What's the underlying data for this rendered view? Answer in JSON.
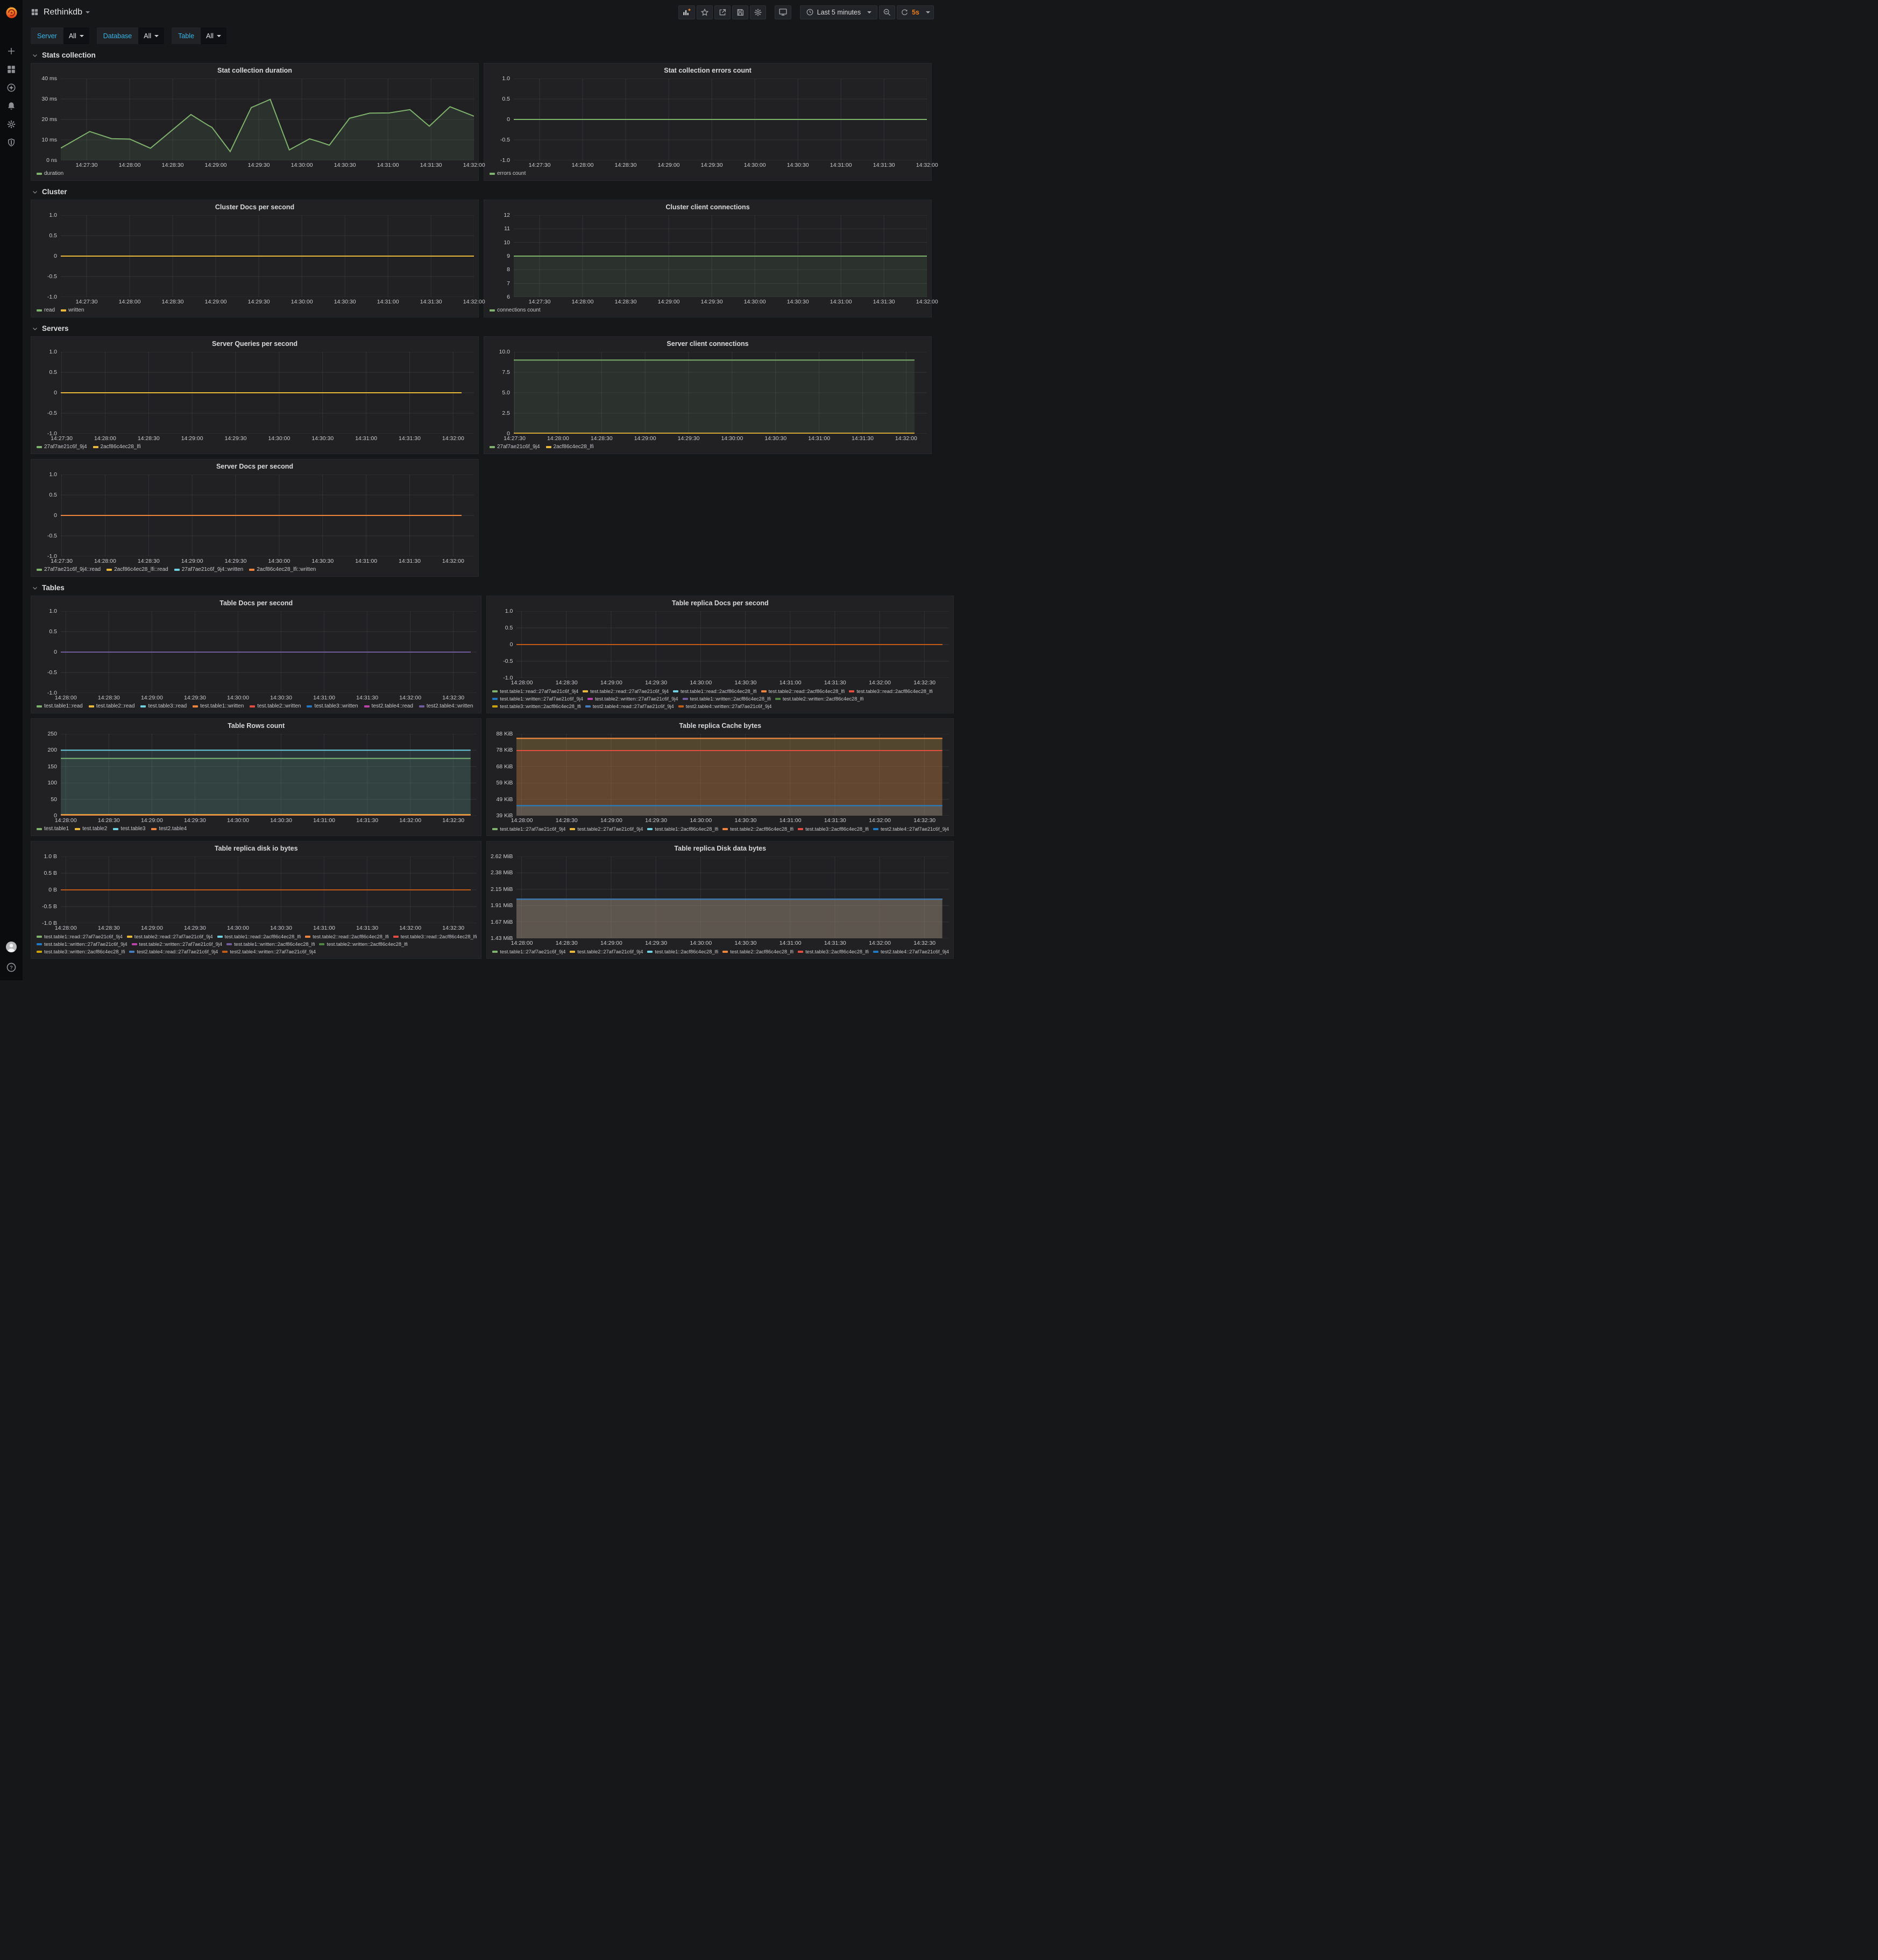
{
  "header": {
    "title": "Rethinkdb",
    "time_range": "Last 5 minutes",
    "refresh": "5s"
  },
  "filters": [
    {
      "label": "Server",
      "value": "All"
    },
    {
      "label": "Database",
      "value": "All"
    },
    {
      "label": "Table",
      "value": "All"
    }
  ],
  "sidebar": {
    "icons": [
      "plus",
      "dashboards",
      "explore",
      "alerting",
      "configuration",
      "server-admin"
    ],
    "bottom": [
      "user-avatar",
      "help"
    ]
  },
  "toolbar": [
    "add-panel",
    "mark-favorite",
    "share-dashboard",
    "save-dashboard",
    "dashboard-settings",
    "cycle-view-mode",
    "time-range",
    "zoom-out",
    "refresh"
  ],
  "colors": {
    "accent_orange": "#eb7b18",
    "filter_label_teal": "#33b5e5",
    "page_bg": "#161719",
    "panel_bg": "#212124",
    "green": "#7EB26D",
    "yellow": "#EAB839",
    "cyan": "#6ED0E0",
    "orange": "#EF843C",
    "red": "#E24D42",
    "blue": "#1F78C1",
    "magenta": "#BA43A9",
    "purple": "#705DA0",
    "dark_green": "#508642",
    "dark_yellow": "#CCA300",
    "blue2": "#447EBC",
    "dark_orange": "#C15C17"
  },
  "sections": [
    {
      "title": "Stats collection",
      "panels": [
        0,
        1
      ]
    },
    {
      "title": "Cluster",
      "panels": [
        2,
        3
      ]
    },
    {
      "title": "Servers",
      "panels": [
        4,
        5,
        6
      ]
    },
    {
      "title": "Tables",
      "panels": [
        7,
        8,
        9,
        10,
        11,
        12
      ]
    }
  ],
  "panels": [
    {
      "title": "Stat collection duration",
      "type": "line",
      "yticks": [
        "40 ms",
        "30 ms",
        "20 ms",
        "10 ms",
        "0 ns"
      ],
      "ymin": 0,
      "ymax": 40,
      "xticks": {
        "labels": [
          "14:27:30",
          "14:28:00",
          "14:28:30",
          "14:29:00",
          "14:29:30",
          "14:30:00",
          "14:30:30",
          "14:31:00",
          "14:31:30",
          "14:32:00"
        ],
        "start": 0.0625,
        "step": 0.1042
      },
      "series": [
        {
          "name": "duration",
          "color": "#7EB26D",
          "fill": true,
          "points": [
            [
              0,
              6
            ],
            [
              0.07,
              14.1
            ],
            [
              0.123,
              10.6
            ],
            [
              0.167,
              10.4
            ],
            [
              0.217,
              5.9
            ],
            [
              0.315,
              22.4
            ],
            [
              0.356,
              17.2
            ],
            [
              0.366,
              16.1
            ],
            [
              0.41,
              4.3
            ],
            [
              0.461,
              25.8
            ],
            [
              0.507,
              29.8
            ],
            [
              0.553,
              5.1
            ],
            [
              0.602,
              10.5
            ],
            [
              0.627,
              9
            ],
            [
              0.65,
              7.4
            ],
            [
              0.699,
              20.6
            ],
            [
              0.748,
              23.1
            ],
            [
              0.795,
              23.2
            ],
            [
              0.845,
              24.8
            ],
            [
              0.892,
              16.7
            ],
            [
              0.942,
              26.2
            ],
            [
              1,
              21.6
            ]
          ]
        }
      ]
    },
    {
      "title": "Stat collection errors count",
      "type": "line",
      "yticks": [
        "1.0",
        "0.5",
        "0",
        "-0.5",
        "-1.0"
      ],
      "ymin": -1,
      "ymax": 1,
      "xticks": {
        "labels": [
          "14:27:30",
          "14:28:00",
          "14:28:30",
          "14:29:00",
          "14:29:30",
          "14:30:00",
          "14:30:30",
          "14:31:00",
          "14:31:30",
          "14:32:00"
        ],
        "start": 0.0625,
        "step": 0.1042
      },
      "series": [
        {
          "name": "errors count",
          "color": "#7EB26D",
          "value": 0
        }
      ]
    },
    {
      "title": "Cluster Docs per second",
      "type": "line",
      "yticks": [
        "1.0",
        "0.5",
        "0",
        "-0.5",
        "-1.0"
      ],
      "ymin": -1,
      "ymax": 1,
      "xticks": {
        "labels": [
          "14:27:30",
          "14:28:00",
          "14:28:30",
          "14:29:00",
          "14:29:30",
          "14:30:00",
          "14:30:30",
          "14:31:00",
          "14:31:30",
          "14:32:00"
        ],
        "start": 0.0625,
        "step": 0.1042
      },
      "series": [
        {
          "name": "read",
          "color": "#7EB26D",
          "value": 0
        },
        {
          "name": "written",
          "color": "#EAB839",
          "value": 0
        }
      ]
    },
    {
      "title": "Cluster client connections",
      "type": "line",
      "yticks": [
        "12",
        "11",
        "10",
        "9",
        "8",
        "7",
        "6"
      ],
      "ymin": 6,
      "ymax": 12,
      "xticks": {
        "labels": [
          "14:27:30",
          "14:28:00",
          "14:28:30",
          "14:29:00",
          "14:29:30",
          "14:30:00",
          "14:30:30",
          "14:31:00",
          "14:31:30",
          "14:32:00"
        ],
        "start": 0.0625,
        "step": 0.1042
      },
      "series": [
        {
          "name": "connections count",
          "color": "#7EB26D",
          "value": 9,
          "fill": true
        }
      ]
    },
    {
      "title": "Server Queries per second",
      "type": "line",
      "yticks": [
        "1.0",
        "0.5",
        "0",
        "-0.5",
        "-1.0"
      ],
      "ymin": -1,
      "ymax": 1,
      "xend": 0.97,
      "xticks": {
        "labels": [
          "14:27:30",
          "14:28:00",
          "14:28:30",
          "14:29:00",
          "14:29:30",
          "14:30:00",
          "14:30:30",
          "14:31:00",
          "14:31:30",
          "14:32:00"
        ],
        "start": 0.002,
        "step": 0.1053
      },
      "series": [
        {
          "name": "27af7ae21c6f_9j4",
          "color": "#7EB26D",
          "value": 0
        },
        {
          "name": "2acf86c4ec28_lfi",
          "color": "#EAB839",
          "value": 0
        }
      ]
    },
    {
      "title": "Server client connections",
      "type": "line",
      "yticks": [
        "10.0",
        "7.5",
        "5.0",
        "2.5",
        "0"
      ],
      "ymin": 0,
      "ymax": 10,
      "xend": 0.97,
      "xticks": {
        "labels": [
          "14:27:30",
          "14:28:00",
          "14:28:30",
          "14:29:00",
          "14:29:30",
          "14:30:00",
          "14:30:30",
          "14:31:00",
          "14:31:30",
          "14:32:00"
        ],
        "start": 0.002,
        "step": 0.1053
      },
      "series": [
        {
          "name": "27af7ae21c6f_9j4",
          "color": "#7EB26D",
          "value": 9,
          "fill": true
        },
        {
          "name": "2acf86c4ec28_lfi",
          "color": "#EAB839",
          "value": 0.05
        }
      ]
    },
    {
      "title": "Server Docs per second",
      "type": "line",
      "yticks": [
        "1.0",
        "0.5",
        "0",
        "-0.5",
        "-1.0"
      ],
      "ymin": -1,
      "ymax": 1,
      "xend": 0.97,
      "xticks": {
        "labels": [
          "14:27:30",
          "14:28:00",
          "14:28:30",
          "14:29:00",
          "14:29:30",
          "14:30:00",
          "14:30:30",
          "14:31:00",
          "14:31:30",
          "14:32:00"
        ],
        "start": 0.002,
        "step": 0.1053
      },
      "series": [
        {
          "name": "27af7ae21c6f_9j4::read",
          "color": "#7EB26D",
          "value": 0
        },
        {
          "name": "2acf86c4ec28_lfi::read",
          "color": "#EAB839",
          "value": 0
        },
        {
          "name": "27af7ae21c6f_9j4::written",
          "color": "#6ED0E0",
          "value": 0
        },
        {
          "name": "2acf86c4ec28_lfi::written",
          "color": "#EF843C",
          "value": 0
        }
      ]
    },
    {
      "title": "Table Docs per second",
      "type": "line",
      "yticks": [
        "1.0",
        "0.5",
        "0",
        "-0.5",
        "-1.0"
      ],
      "ymin": -1,
      "ymax": 1,
      "xend": 0.985,
      "xticks": {
        "labels": [
          "14:28:00",
          "14:28:30",
          "14:29:00",
          "14:29:30",
          "14:30:00",
          "14:30:30",
          "14:31:00",
          "14:31:30",
          "14:32:00",
          "14:32:30"
        ],
        "start": 0.012,
        "step": 0.1035
      },
      "series": [
        {
          "name": "test.table1::read",
          "color": "#7EB26D",
          "value": 0
        },
        {
          "name": "test.table2::read",
          "color": "#EAB839",
          "value": 0
        },
        {
          "name": "test.table3::read",
          "color": "#6ED0E0",
          "value": 0
        },
        {
          "name": "test.table1::written",
          "color": "#EF843C",
          "value": 0
        },
        {
          "name": "test.table2::written",
          "color": "#E24D42",
          "value": 0
        },
        {
          "name": "test.table3::written",
          "color": "#1F78C1",
          "value": 0
        },
        {
          "name": "test2.table4::read",
          "color": "#BA43A9",
          "value": 0
        },
        {
          "name": "test2.table4::written",
          "color": "#705DA0",
          "value": 0
        }
      ]
    },
    {
      "title": "Table replica Docs per second",
      "type": "line",
      "small_legend": true,
      "yticks": [
        "1.0",
        "0.5",
        "0",
        "-0.5",
        "-1.0"
      ],
      "ymin": -1,
      "ymax": 1,
      "xend": 0.985,
      "xticks": {
        "labels": [
          "14:28:00",
          "14:28:30",
          "14:29:00",
          "14:29:30",
          "14:30:00",
          "14:30:30",
          "14:31:00",
          "14:31:30",
          "14:32:00",
          "14:32:30"
        ],
        "start": 0.012,
        "step": 0.1035
      },
      "legend_rows": [
        [
          0,
          1,
          2,
          3,
          4
        ],
        [
          5,
          6,
          7,
          8
        ],
        [
          9,
          10,
          11
        ]
      ],
      "series": [
        {
          "name": "test.table1::read::27af7ae21c6f_9j4",
          "color": "#7EB26D",
          "value": 0
        },
        {
          "name": "test.table2::read::27af7ae21c6f_9j4",
          "color": "#EAB839",
          "value": 0
        },
        {
          "name": "test.table1::read::2acf86c4ec28_lfi",
          "color": "#6ED0E0",
          "value": 0
        },
        {
          "name": "test.table2::read::2acf86c4ec28_lfi",
          "color": "#EF843C",
          "value": 0
        },
        {
          "name": "test.table3::read::2acf86c4ec28_lfi",
          "color": "#E24D42",
          "value": 0
        },
        {
          "name": "test.table1::written::27af7ae21c6f_9j4",
          "color": "#1F78C1",
          "value": 0
        },
        {
          "name": "test.table2::written::27af7ae21c6f_9j4",
          "color": "#BA43A9",
          "value": 0
        },
        {
          "name": "test.table1::written::2acf86c4ec28_lfi",
          "color": "#705DA0",
          "value": 0
        },
        {
          "name": "test.table2::written::2acf86c4ec28_lfi",
          "color": "#508642",
          "value": 0
        },
        {
          "name": "test.table3::written::2acf86c4ec28_lfi",
          "color": "#CCA300",
          "value": 0
        },
        {
          "name": "test2.table4::read::27af7ae21c6f_9j4",
          "color": "#447EBC",
          "value": 0
        },
        {
          "name": "test2.table4::written::27af7ae21c6f_9j4",
          "color": "#C15C17",
          "value": 0
        }
      ]
    },
    {
      "title": "Table Rows count",
      "type": "line",
      "yticks": [
        "250",
        "200",
        "150",
        "100",
        "50",
        "0"
      ],
      "ymin": 0,
      "ymax": 250,
      "xend": 0.985,
      "xticks": {
        "labels": [
          "14:28:00",
          "14:28:30",
          "14:29:00",
          "14:29:30",
          "14:30:00",
          "14:30:30",
          "14:31:00",
          "14:31:30",
          "14:32:00",
          "14:32:30"
        ],
        "start": 0.012,
        "step": 0.1035
      },
      "series": [
        {
          "name": "test.table1",
          "color": "#7EB26D",
          "value": 175,
          "fill": true
        },
        {
          "name": "test.table2",
          "color": "#EAB839",
          "value": 3,
          "fill": true
        },
        {
          "name": "test.table3",
          "color": "#6ED0E0",
          "value": 200,
          "fill": true
        },
        {
          "name": "test2.table4",
          "color": "#EF843C",
          "value": 1.5,
          "fill": true
        }
      ]
    },
    {
      "title": "Table replica Cache bytes",
      "type": "line",
      "small_legend": true,
      "yticks": [
        "88 KiB",
        "78 KiB",
        "68 KiB",
        "59 KiB",
        "49 KiB",
        "39 KiB"
      ],
      "ymin": 39,
      "ymax": 88,
      "xend": 0.985,
      "xticks": {
        "labels": [
          "14:28:00",
          "14:28:30",
          "14:29:00",
          "14:29:30",
          "14:30:00",
          "14:30:30",
          "14:31:00",
          "14:31:30",
          "14:32:00",
          "14:32:30"
        ],
        "start": 0.012,
        "step": 0.1035
      },
      "series": [
        {
          "name": "test.table1::27af7ae21c6f_9j4",
          "color": "#7EB26D",
          "value": 85.3,
          "fill": true
        },
        {
          "name": "test.table2::27af7ae21c6f_9j4",
          "color": "#EAB839",
          "value": 85.3,
          "fill": true
        },
        {
          "name": "test.table1::2acf86c4ec28_lfi",
          "color": "#6ED0E0",
          "value": 45,
          "fill": true
        },
        {
          "name": "test.table2::2acf86c4ec28_lfi",
          "color": "#EF843C",
          "value": 85.3,
          "fill": true
        },
        {
          "name": "test.table3::2acf86c4ec28_lfi",
          "color": "#E24D42",
          "value": 78,
          "fill": true
        },
        {
          "name": "test2.table4::27af7ae21c6f_9j4",
          "color": "#1F78C1",
          "value": 45,
          "fill": true
        }
      ]
    },
    {
      "title": "Table replica disk io bytes",
      "type": "line",
      "small_legend": true,
      "yticks": [
        "1.0 B",
        "0.5 B",
        "0 B",
        "-0.5 B",
        "-1.0 B"
      ],
      "ymin": -1,
      "ymax": 1,
      "xend": 0.985,
      "xticks": {
        "labels": [
          "14:28:00",
          "14:28:30",
          "14:29:00",
          "14:29:30",
          "14:30:00",
          "14:30:30",
          "14:31:00",
          "14:31:30",
          "14:32:00",
          "14:32:30"
        ],
        "start": 0.012,
        "step": 0.1035
      },
      "legend_rows": [
        [
          0,
          1,
          2,
          3,
          4
        ],
        [
          5,
          6,
          7,
          8
        ],
        [
          9,
          10,
          11
        ]
      ],
      "series": [
        {
          "name": "test.table1::read::27af7ae21c6f_9j4",
          "color": "#7EB26D",
          "value": 0
        },
        {
          "name": "test.table2::read::27af7ae21c6f_9j4",
          "color": "#EAB839",
          "value": 0
        },
        {
          "name": "test.table1::read::2acf86c4ec28_lfi",
          "color": "#6ED0E0",
          "value": 0
        },
        {
          "name": "test.table2::read::2acf86c4ec28_lfi",
          "color": "#EF843C",
          "value": 0
        },
        {
          "name": "test.table3::read::2acf86c4ec28_lfi",
          "color": "#E24D42",
          "value": 0
        },
        {
          "name": "test.table1::written::27af7ae21c6f_9j4",
          "color": "#1F78C1",
          "value": 0
        },
        {
          "name": "test.table2::written::27af7ae21c6f_9j4",
          "color": "#BA43A9",
          "value": 0
        },
        {
          "name": "test.table1::written::2acf86c4ec28_lfi",
          "color": "#705DA0",
          "value": 0
        },
        {
          "name": "test.table2::written::2acf86c4ec28_lfi",
          "color": "#508642",
          "value": 0
        },
        {
          "name": "test.table3::written::2acf86c4ec28_lfi",
          "color": "#CCA300",
          "value": 0
        },
        {
          "name": "test2.table4::read::27af7ae21c6f_9j4",
          "color": "#447EBC",
          "value": 0
        },
        {
          "name": "test2.table4::written::27af7ae21c6f_9j4",
          "color": "#C15C17",
          "value": 0
        }
      ]
    },
    {
      "title": "Table replica Disk data bytes",
      "type": "line",
      "small_legend": true,
      "yticks": [
        "2.62 MiB",
        "2.38 MiB",
        "2.15 MiB",
        "1.91 MiB",
        "1.67 MiB",
        "1.43 MiB"
      ],
      "ymin": 1.43,
      "ymax": 2.62,
      "xend": 0.985,
      "xticks": {
        "labels": [
          "14:28:00",
          "14:28:30",
          "14:29:00",
          "14:29:30",
          "14:30:00",
          "14:30:30",
          "14:31:00",
          "14:31:30",
          "14:32:00",
          "14:32:30"
        ],
        "start": 0.012,
        "step": 0.1035
      },
      "series": [
        {
          "name": "test.table1::27af7ae21c6f_9j4",
          "color": "#7EB26D",
          "value": 2.0,
          "fill": true
        },
        {
          "name": "test.table2::27af7ae21c6f_9j4",
          "color": "#EAB839",
          "value": 2.0,
          "fill": true
        },
        {
          "name": "test.table1::2acf86c4ec28_lfi",
          "color": "#6ED0E0",
          "value": 2.0,
          "fill": true
        },
        {
          "name": "test.table2::2acf86c4ec28_lfi",
          "color": "#EF843C",
          "value": 2.0,
          "fill": true
        },
        {
          "name": "test.table3::2acf86c4ec28_lfi",
          "color": "#E24D42",
          "value": 2.0,
          "fill": true
        },
        {
          "name": "test2.table4::27af7ae21c6f_9j4",
          "color": "#1F78C1",
          "value": 2.0,
          "fill": true
        }
      ]
    }
  ]
}
